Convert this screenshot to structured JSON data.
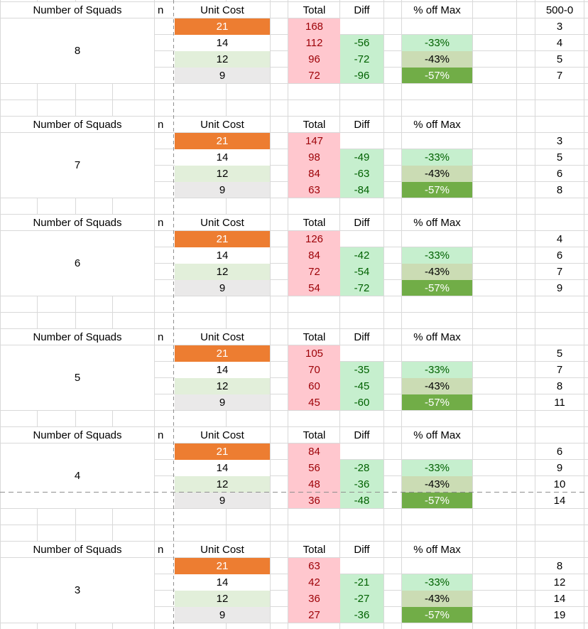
{
  "sheet": {
    "headers": {
      "squads": "Number of Squads",
      "n": "n",
      "unit_cost": "Unit Cost",
      "total": "Total",
      "diff": "Diff",
      "pct_off_max": "% off Max"
    },
    "blocks": [
      {
        "squads": "8",
        "budget_header": "500-0",
        "rows": [
          {
            "unit_cost": "21",
            "total": "168",
            "diff": "",
            "pct": "",
            "budget": "3"
          },
          {
            "unit_cost": "14",
            "total": "112",
            "diff": "-56",
            "pct": "-33%",
            "budget": "4"
          },
          {
            "unit_cost": "12",
            "total": "96",
            "diff": "-72",
            "pct": "-43%",
            "budget": "5"
          },
          {
            "unit_cost": "9",
            "total": "72",
            "diff": "-96",
            "pct": "-57%",
            "budget": "7"
          }
        ]
      },
      {
        "squads": "7",
        "budget_header": "",
        "rows": [
          {
            "unit_cost": "21",
            "total": "147",
            "diff": "",
            "pct": "",
            "budget": "3"
          },
          {
            "unit_cost": "14",
            "total": "98",
            "diff": "-49",
            "pct": "-33%",
            "budget": "5"
          },
          {
            "unit_cost": "12",
            "total": "84",
            "diff": "-63",
            "pct": "-43%",
            "budget": "6"
          },
          {
            "unit_cost": "9",
            "total": "63",
            "diff": "-84",
            "pct": "-57%",
            "budget": "8"
          }
        ]
      },
      {
        "squads": "6",
        "budget_header": "",
        "rows": [
          {
            "unit_cost": "21",
            "total": "126",
            "diff": "",
            "pct": "",
            "budget": "4"
          },
          {
            "unit_cost": "14",
            "total": "84",
            "diff": "-42",
            "pct": "-33%",
            "budget": "6"
          },
          {
            "unit_cost": "12",
            "total": "72",
            "diff": "-54",
            "pct": "-43%",
            "budget": "7"
          },
          {
            "unit_cost": "9",
            "total": "54",
            "diff": "-72",
            "pct": "-57%",
            "budget": "9"
          }
        ]
      },
      {
        "squads": "5",
        "budget_header": "",
        "rows": [
          {
            "unit_cost": "21",
            "total": "105",
            "diff": "",
            "pct": "",
            "budget": "5"
          },
          {
            "unit_cost": "14",
            "total": "70",
            "diff": "-35",
            "pct": "-33%",
            "budget": "7"
          },
          {
            "unit_cost": "12",
            "total": "60",
            "diff": "-45",
            "pct": "-43%",
            "budget": "8"
          },
          {
            "unit_cost": "9",
            "total": "45",
            "diff": "-60",
            "pct": "-57%",
            "budget": "11"
          }
        ]
      },
      {
        "squads": "4",
        "budget_header": "",
        "rows": [
          {
            "unit_cost": "21",
            "total": "84",
            "diff": "",
            "pct": "",
            "budget": "6"
          },
          {
            "unit_cost": "14",
            "total": "56",
            "diff": "-28",
            "pct": "-33%",
            "budget": "9"
          },
          {
            "unit_cost": "12",
            "total": "48",
            "diff": "-36",
            "pct": "-43%",
            "budget": "10"
          },
          {
            "unit_cost": "9",
            "total": "36",
            "diff": "-48",
            "pct": "-57%",
            "budget": "14"
          }
        ]
      },
      {
        "squads": "3",
        "budget_header": "",
        "rows": [
          {
            "unit_cost": "21",
            "total": "63",
            "diff": "",
            "pct": "",
            "budget": "8"
          },
          {
            "unit_cost": "14",
            "total": "42",
            "diff": "-21",
            "pct": "-33%",
            "budget": "12"
          },
          {
            "unit_cost": "12",
            "total": "36",
            "diff": "-27",
            "pct": "-43%",
            "budget": "14"
          },
          {
            "unit_cost": "9",
            "total": "27",
            "diff": "-36",
            "pct": "-57%",
            "budget": "19"
          }
        ]
      }
    ],
    "colors": {
      "accent_orange": "#ed7d31",
      "fill_pink": "#ffc7ce",
      "text_dark_red": "#9c0006",
      "fill_mint_green": "#c6efce",
      "text_dark_green": "#006100",
      "fill_sage_green": "#cbdcb4",
      "fill_medium_green": "#71ad47",
      "fill_light_green": "#e2efda",
      "fill_light_gray": "#eae9e9",
      "gridline": "#d9d9d9",
      "page_break_line": "#8f8f8f"
    }
  }
}
